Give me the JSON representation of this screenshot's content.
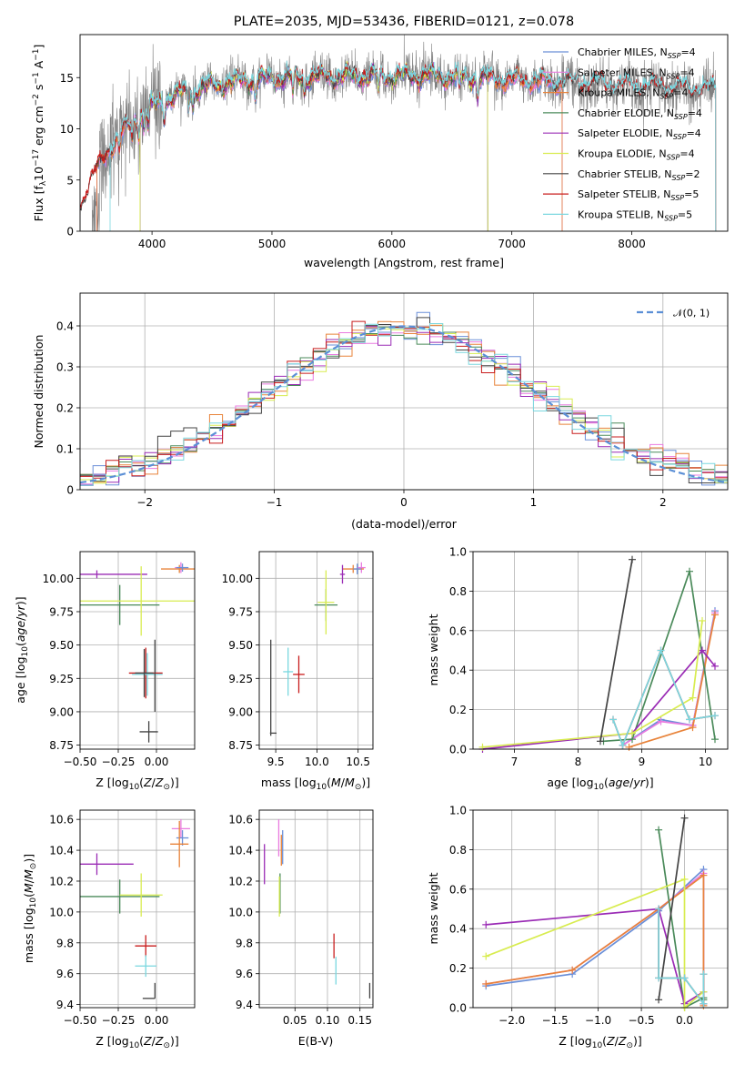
{
  "colors": {
    "chabrier_miles": "#6a8fd8",
    "salpeter_miles": "#e97be0",
    "kroupa_miles": "#e8833a",
    "chabrier_elodie": "#4a8a5a",
    "salpeter_elodie": "#9a2bb5",
    "kroupa_elodie": "#d8ec50",
    "chabrier_stelib": "#444444",
    "salpeter_stelib": "#c81c1c",
    "kroupa_stelib": "#7ad7df",
    "gauss": "#5b8fd6"
  },
  "chart_data": [
    {
      "id": "spectrum",
      "type": "line",
      "title": "PLATE=2035, MJD=53436, FIBERID=0121, z=0.078",
      "xlabel": "wavelength [Angstrom, rest frame]",
      "ylabel": "Flux [f_λ10^-17 erg cm^-2 s^-1 A^-1]",
      "xlim": [
        3400,
        8800
      ],
      "ylim": [
        0,
        19.2
      ],
      "xticks": [
        4000,
        5000,
        6000,
        7000,
        8000
      ],
      "yticks": [
        0,
        5,
        10,
        15
      ],
      "grid": false,
      "legend_position": "right",
      "legend": [
        "Chabrier MILES, N_SSP=4",
        "Salpeter MILES, N_SSP=4",
        "Kroupa MILES, N_SSP=4",
        "Chabrier ELODIE, N_SSP=4",
        "Salpeter ELODIE, N_SSP=4",
        "Kroupa ELODIE, N_SSP=4",
        "Chabrier STELIB, N_SSP=2",
        "Salpeter STELIB, N_SSP=5",
        "Kroupa STELIB, N_SSP=5"
      ],
      "series": [
        {
          "name": "Chabrier MILES",
          "color_key": "chabrier_miles",
          "range": [
            3540,
            7420
          ]
        },
        {
          "name": "Salpeter MILES",
          "color_key": "salpeter_miles",
          "range": [
            3540,
            7420
          ]
        },
        {
          "name": "Kroupa MILES",
          "color_key": "kroupa_miles",
          "range": [
            3540,
            7420
          ]
        },
        {
          "name": "Chabrier ELODIE",
          "color_key": "chabrier_elodie",
          "range": [
            3900,
            6800
          ]
        },
        {
          "name": "Salpeter ELODIE",
          "color_key": "salpeter_elodie",
          "range": [
            3900,
            6800
          ]
        },
        {
          "name": "Kroupa ELODIE",
          "color_key": "kroupa_elodie",
          "range": [
            3900,
            6800
          ]
        },
        {
          "name": "Chabrier STELIB",
          "color_key": "chabrier_stelib",
          "range": [
            3200,
            8700
          ]
        },
        {
          "name": "Salpeter STELIB",
          "color_key": "salpeter_stelib",
          "range": [
            3200,
            8700
          ]
        },
        {
          "name": "Kroupa STELIB",
          "color_key": "kroupa_stelib",
          "range": [
            3650,
            8700
          ]
        }
      ],
      "observed": {
        "color": "#808080",
        "range": [
          3500,
          8700
        ]
      }
    },
    {
      "id": "residuals",
      "type": "histogram",
      "xlabel": "(data-model)/error",
      "ylabel": "Normed distribution",
      "xlim": [
        -2.5,
        2.5
      ],
      "ylim": [
        0,
        0.48
      ],
      "xticks": [
        -2,
        -1,
        0,
        1,
        2
      ],
      "yticks": [
        0.0,
        0.1,
        0.2,
        0.3,
        0.4
      ],
      "grid": true,
      "legend_position": "top-right",
      "legend": [
        "𝒩(0, 1)"
      ],
      "bin_width": 0.1
    },
    {
      "id": "age_vs_Z",
      "type": "errorbar",
      "xlabel": "Z [log10(Z/Z⊙)]",
      "ylabel": "age [log10(age/yr)]",
      "xlim": [
        -0.5,
        0.25
      ],
      "ylim": [
        8.72,
        10.2
      ],
      "xticks": [
        -0.5,
        -0.25,
        0.0
      ],
      "xticklabels": [
        "−0.50",
        "−0.25",
        "0.00"
      ],
      "yticks": [
        8.75,
        9.0,
        9.25,
        9.5,
        9.75,
        10.0
      ],
      "yticklabels": [
        "8.75",
        "9.00",
        "9.25",
        "9.50",
        "9.75",
        "10.00"
      ],
      "grid": true,
      "points": [
        {
          "k": "salpeter_miles",
          "x": 0.16,
          "y": 10.08,
          "ex": 0.04,
          "ey": 0.04
        },
        {
          "k": "kroupa_miles",
          "x": 0.15,
          "y": 10.07,
          "ex": 0.12,
          "ey": 0.03
        },
        {
          "k": "chabrier_miles",
          "x": 0.17,
          "y": 10.08,
          "ex": 0.04,
          "ey": 0.03
        },
        {
          "k": "salpeter_elodie",
          "x": -0.39,
          "y": 10.03,
          "ex": 0.33,
          "ey": 0.03
        },
        {
          "k": "chabrier_elodie",
          "x": -0.24,
          "y": 9.8,
          "ex": 0.26,
          "ey": 0.15
        },
        {
          "k": "kroupa_elodie",
          "x": -0.1,
          "y": 9.83,
          "ex": 0.4,
          "ey": 0.26
        },
        {
          "k": "salpeter_stelib",
          "x": -0.07,
          "y": 9.29,
          "ex": 0.11,
          "ey": 0.19
        },
        {
          "k": "kroupa_stelib",
          "x": -0.06,
          "y": 9.28,
          "ex": 0.1,
          "ey": 0.16
        },
        {
          "k": "chabrier_stelib",
          "x": -0.08,
          "y": 9.29,
          "ex": 0.06,
          "ey": 0.18
        },
        {
          "k": "chabrier_stelib",
          "x": -0.01,
          "y": 9.27,
          "ex": 0.0,
          "ey": 0.27
        },
        {
          "k": "chabrier_stelib",
          "x": -0.05,
          "y": 8.85,
          "ex": 0.06,
          "ey": 0.08
        }
      ]
    },
    {
      "id": "age_vs_mass",
      "type": "errorbar",
      "xlabel": "mass [log10(M/M⊙)]",
      "ylabel": "",
      "xlim": [
        9.3,
        10.68
      ],
      "ylim": [
        8.72,
        10.2
      ],
      "xticks": [
        9.5,
        10.0,
        10.5
      ],
      "xticklabels": [
        "9.5",
        "10.0",
        "10.5"
      ],
      "yticks": [
        8.75,
        9.0,
        9.25,
        9.5,
        9.75,
        10.0
      ],
      "yticklabels": [
        "8.75",
        "9.00",
        "9.25",
        "9.50",
        "9.75",
        "10.00"
      ],
      "grid": true,
      "points": [
        {
          "k": "salpeter_miles",
          "x": 10.54,
          "y": 10.08,
          "ex": 0.05,
          "ey": 0.04
        },
        {
          "k": "kroupa_miles",
          "x": 10.44,
          "y": 10.07,
          "ex": 0.13,
          "ey": 0.03
        },
        {
          "k": "chabrier_miles",
          "x": 10.49,
          "y": 10.07,
          "ex": 0.05,
          "ey": 0.04
        },
        {
          "k": "salpeter_elodie",
          "x": 10.31,
          "y": 10.03,
          "ex": 0.03,
          "ey": 0.07
        },
        {
          "k": "chabrier_elodie",
          "x": 10.11,
          "y": 9.8,
          "ex": 0.14,
          "ey": 0.12
        },
        {
          "k": "kroupa_elodie",
          "x": 10.11,
          "y": 9.82,
          "ex": 0.1,
          "ey": 0.24
        },
        {
          "k": "salpeter_stelib",
          "x": 9.78,
          "y": 9.28,
          "ex": 0.07,
          "ey": 0.14
        },
        {
          "k": "kroupa_stelib",
          "x": 9.65,
          "y": 9.3,
          "ex": 0.06,
          "ey": 0.18
        },
        {
          "k": "chabrier_stelib",
          "x": 9.44,
          "y": 9.18,
          "ex": 0.0,
          "ey": 0.36
        },
        {
          "k": "chabrier_stelib",
          "x": 9.47,
          "y": 8.84,
          "ex": 0.04,
          "ey": 0.0
        }
      ]
    },
    {
      "id": "massweight_vs_age",
      "type": "line",
      "xlabel": "age [log10(age/yr)]",
      "ylabel": "mass weight",
      "xlim": [
        6.35,
        10.35
      ],
      "ylim": [
        0,
        1
      ],
      "xticks": [
        7,
        8,
        9,
        10
      ],
      "yticks": [
        0.0,
        0.2,
        0.4,
        0.6,
        0.8,
        1.0
      ],
      "yticklabels": [
        "0.0",
        "0.2",
        "0.4",
        "0.6",
        "0.8",
        "1.0"
      ],
      "grid": true,
      "series": [
        {
          "k": "chabrier_miles",
          "x": [
            8.7,
            9.3,
            9.8,
            10.15
          ],
          "y": [
            0.02,
            0.15,
            0.12,
            0.7
          ]
        },
        {
          "k": "salpeter_miles",
          "x": [
            8.7,
            9.3,
            9.8,
            10.15
          ],
          "y": [
            0.02,
            0.14,
            0.12,
            0.69
          ]
        },
        {
          "k": "kroupa_miles",
          "x": [
            8.8,
            9.8,
            10.15
          ],
          "y": [
            0.01,
            0.11,
            0.68
          ]
        },
        {
          "k": "chabrier_elodie",
          "x": [
            8.4,
            8.85,
            9.75,
            10.15
          ],
          "y": [
            0.04,
            0.05,
            0.9,
            0.05
          ]
        },
        {
          "k": "salpeter_elodie",
          "x": [
            6.5,
            8.85,
            9.95,
            10.15
          ],
          "y": [
            0.0,
            0.08,
            0.5,
            0.42
          ]
        },
        {
          "k": "kroupa_elodie",
          "x": [
            6.5,
            8.85,
            9.8,
            9.95
          ],
          "y": [
            0.01,
            0.08,
            0.26,
            0.65
          ]
        },
        {
          "k": "chabrier_stelib",
          "x": [
            8.35,
            8.85
          ],
          "y": [
            0.04,
            0.96
          ]
        },
        {
          "k": "salpeter_stelib",
          "x": [
            8.55,
            8.7,
            9.3,
            9.75,
            10.15
          ],
          "y": [
            0.15,
            0.02,
            0.5,
            0.15,
            0.17
          ]
        },
        {
          "k": "kroupa_stelib",
          "x": [
            8.55,
            8.7,
            9.3,
            9.75,
            10.15
          ],
          "y": [
            0.15,
            0.02,
            0.5,
            0.15,
            0.17
          ]
        }
      ]
    },
    {
      "id": "mass_vs_Z",
      "type": "errorbar",
      "xlabel": "Z [log10(Z/Z⊙)]",
      "ylabel": "mass [log10(M/M⊙)]",
      "xlim": [
        -0.5,
        0.25
      ],
      "ylim": [
        9.38,
        10.66
      ],
      "xticks": [
        -0.5,
        -0.25,
        0.0
      ],
      "xticklabels": [
        "−0.50",
        "−0.25",
        "0.00"
      ],
      "yticks": [
        9.4,
        9.6,
        9.8,
        10.0,
        10.2,
        10.4,
        10.6
      ],
      "yticklabels": [
        "9.4",
        "9.6",
        "9.8",
        "10.0",
        "10.2",
        "10.4",
        "10.6"
      ],
      "grid": true,
      "points": [
        {
          "k": "salpeter_miles",
          "x": 0.16,
          "y": 10.54,
          "ex": 0.06,
          "ey": 0.06
        },
        {
          "k": "chabrier_miles",
          "x": 0.17,
          "y": 10.48,
          "ex": 0.04,
          "ey": 0.05
        },
        {
          "k": "kroupa_miles",
          "x": 0.15,
          "y": 10.44,
          "ex": 0.06,
          "ey": 0.15
        },
        {
          "k": "salpeter_elodie",
          "x": -0.39,
          "y": 10.31,
          "ex": 0.24,
          "ey": 0.07
        },
        {
          "k": "chabrier_elodie",
          "x": -0.24,
          "y": 10.1,
          "ex": 0.26,
          "ey": 0.11
        },
        {
          "k": "kroupa_elodie",
          "x": -0.1,
          "y": 10.11,
          "ex": 0.14,
          "ey": 0.14
        },
        {
          "k": "salpeter_stelib",
          "x": -0.07,
          "y": 9.78,
          "ex": 0.07,
          "ey": 0.07
        },
        {
          "k": "kroupa_stelib",
          "x": -0.07,
          "y": 9.65,
          "ex": 0.07,
          "ey": 0.07
        },
        {
          "k": "chabrier_stelib",
          "x": -0.01,
          "y": 9.49,
          "ex": 0.0,
          "ey": 0.05
        },
        {
          "k": "chabrier_stelib",
          "x": -0.05,
          "y": 9.44,
          "ex": 0.04,
          "ey": 0.0
        }
      ]
    },
    {
      "id": "mass_vs_ebv",
      "type": "errorbar",
      "xlabel": "E(B-V)",
      "ylabel": "",
      "xlim": [
        -0.005,
        0.17
      ],
      "ylim": [
        9.38,
        10.66
      ],
      "xticks": [
        0.05,
        0.1,
        0.15
      ],
      "xticklabels": [
        "0.05",
        "0.10",
        "0.15"
      ],
      "yticks": [
        9.4,
        9.6,
        9.8,
        10.0,
        10.2,
        10.4,
        10.6
      ],
      "yticklabels": [
        "9.4",
        "9.6",
        "9.8",
        "10.0",
        "10.2",
        "10.4",
        "10.6"
      ],
      "grid": true,
      "points": [
        {
          "k": "salpeter_miles",
          "x": 0.025,
          "y": 10.48,
          "ex": 0.0,
          "ey": 0.12
        },
        {
          "k": "chabrier_miles",
          "x": 0.031,
          "y": 10.42,
          "ex": 0.0,
          "ey": 0.11
        },
        {
          "k": "kroupa_miles",
          "x": 0.029,
          "y": 10.4,
          "ex": 0.0,
          "ey": 0.1
        },
        {
          "k": "salpeter_elodie",
          "x": 0.003,
          "y": 10.31,
          "ex": 0.0,
          "ey": 0.13
        },
        {
          "k": "chabrier_elodie",
          "x": 0.027,
          "y": 10.12,
          "ex": 0.0,
          "ey": 0.13
        },
        {
          "k": "kroupa_elodie",
          "x": 0.026,
          "y": 10.1,
          "ex": 0.0,
          "ey": 0.13
        },
        {
          "k": "salpeter_stelib",
          "x": 0.11,
          "y": 9.78,
          "ex": 0.0,
          "ey": 0.08
        },
        {
          "k": "kroupa_stelib",
          "x": 0.113,
          "y": 9.62,
          "ex": 0.0,
          "ey": 0.09
        },
        {
          "k": "chabrier_stelib",
          "x": 0.165,
          "y": 9.49,
          "ex": 0.0,
          "ey": 0.05
        }
      ]
    },
    {
      "id": "massweight_vs_Z",
      "type": "line",
      "xlabel": "Z [log10(Z/Z⊙)]",
      "ylabel": "mass weight",
      "xlim": [
        -2.45,
        0.5
      ],
      "ylim": [
        0,
        1
      ],
      "xticks": [
        -2.0,
        -1.5,
        -1.0,
        -0.5,
        0.0
      ],
      "xticklabels": [
        "−2.0",
        "−1.5",
        "−1.0",
        "−0.5",
        "0.0"
      ],
      "yticks": [
        0.0,
        0.2,
        0.4,
        0.6,
        0.8,
        1.0
      ],
      "yticklabels": [
        "0.0",
        "0.2",
        "0.4",
        "0.6",
        "0.8",
        "1.0"
      ],
      "grid": true,
      "series": [
        {
          "k": "chabrier_miles",
          "x": [
            -2.3,
            -1.3,
            -0.3,
            0.22,
            0.22
          ],
          "y": [
            0.11,
            0.17,
            0.49,
            0.7,
            0.02
          ]
        },
        {
          "k": "salpeter_miles",
          "x": [
            -2.3,
            -1.3,
            -0.3,
            0.22,
            0.22
          ],
          "y": [
            0.12,
            0.19,
            0.5,
            0.68,
            0.02
          ]
        },
        {
          "k": "kroupa_miles",
          "x": [
            -2.3,
            -1.3,
            -0.3,
            0.22,
            0.22
          ],
          "y": [
            0.12,
            0.19,
            0.5,
            0.67,
            0.01
          ]
        },
        {
          "k": "chabrier_elodie",
          "x": [
            -0.3,
            0.0,
            0.22,
            0.22
          ],
          "y": [
            0.9,
            0.0,
            0.05,
            0.04
          ]
        },
        {
          "k": "salpeter_elodie",
          "x": [
            -2.3,
            -0.3,
            0.0,
            0.22
          ],
          "y": [
            0.42,
            0.5,
            0.02,
            0.08
          ]
        },
        {
          "k": "kroupa_elodie",
          "x": [
            -2.3,
            0.0,
            0.0,
            0.22
          ],
          "y": [
            0.26,
            0.65,
            0.0,
            0.08
          ]
        },
        {
          "k": "chabrier_stelib",
          "x": [
            -0.3,
            0.0
          ],
          "y": [
            0.04,
            0.96
          ]
        },
        {
          "k": "salpeter_stelib",
          "x": [
            -0.3,
            -0.3,
            0.0,
            0.22,
            0.22
          ],
          "y": [
            0.5,
            0.15,
            0.15,
            0.02,
            0.17
          ]
        },
        {
          "k": "kroupa_stelib",
          "x": [
            -0.3,
            -0.3,
            0.0,
            0.22,
            0.22
          ],
          "y": [
            0.5,
            0.15,
            0.15,
            0.02,
            0.17
          ]
        }
      ]
    }
  ]
}
